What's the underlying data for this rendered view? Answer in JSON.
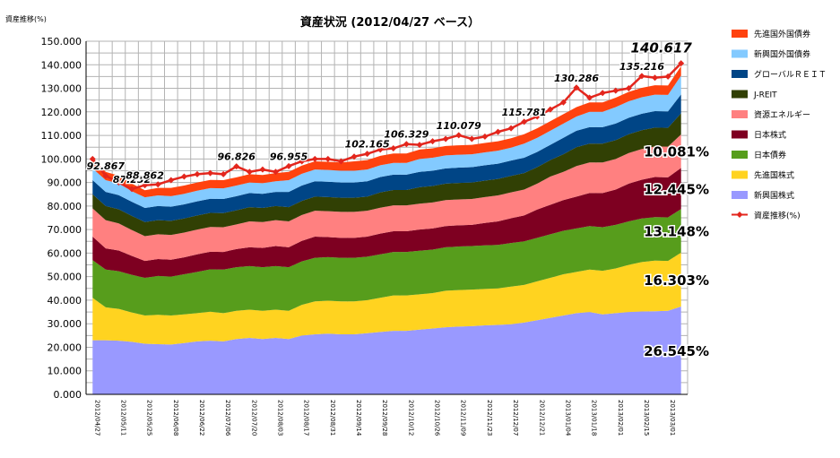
{
  "chart_data": {
    "type": "area",
    "stacked": true,
    "title": "資産状況 (2012/04/27 ベース）",
    "ylabel": "資産推移(%)",
    "ylim": [
      0,
      150
    ],
    "yticks": [
      "0.000",
      "10.000",
      "20.000",
      "30.000",
      "40.000",
      "50.000",
      "60.000",
      "70.000",
      "80.000",
      "90.000",
      "100.000",
      "110.000",
      "120.000",
      "130.000",
      "140.000",
      "150.000"
    ],
    "grid": true,
    "legend_position": "right",
    "x": [
      "2012/04/27",
      "2012/05/04",
      "2012/05/11",
      "2012/05/18",
      "2012/05/25",
      "2012/06/01",
      "2012/06/08",
      "2012/06/15",
      "2012/06/22",
      "2012/06/29",
      "2012/07/06",
      "2012/07/13",
      "2012/07/20",
      "2012/07/27",
      "2012/08/03",
      "2012/08/10",
      "2012/08/17",
      "2012/08/24",
      "2012/08/31",
      "2012/09/07",
      "2012/09/14",
      "2012/09/21",
      "2012/09/28",
      "2012/10/05",
      "2012/10/12",
      "2012/10/19",
      "2012/10/26",
      "2012/11/02",
      "2012/11/09",
      "2012/11/16",
      "2012/11/23",
      "2012/11/30",
      "2012/12/07",
      "2012/12/14",
      "2012/12/21",
      "2012/12/28",
      "2013/01/04",
      "2013/01/11",
      "2013/01/18",
      "2013/01/25",
      "2013/02/01",
      "2013/02/08",
      "2013/02/15",
      "2013/02/22",
      "2013/03/01",
      "2013/03/08"
    ],
    "x_tick_labels": [
      "2012/04/27",
      "2012/05/11",
      "2012/05/25",
      "2012/06/08",
      "2012/06/22",
      "2012/07/06",
      "2012/07/20",
      "2012/08/03",
      "2012/08/17",
      "2012/08/31",
      "2012/09/14",
      "2012/09/28",
      "2012/10/12",
      "2012/10/26",
      "2012/11/09",
      "2012/11/23",
      "2012/12/07",
      "2012/12/21",
      "2013/01/04",
      "2013/01/18",
      "2013/02/01",
      "2013/02/15",
      "2013/03/01"
    ],
    "series": [
      {
        "name": "新興国株式",
        "color": "#9999ff",
        "values": [
          23,
          23,
          22.8,
          22.3,
          21.5,
          21.3,
          21.2,
          21.8,
          22.5,
          22.8,
          22.5,
          23.5,
          24,
          23.5,
          24,
          23.5,
          25,
          25.5,
          25.8,
          25.5,
          25.5,
          26,
          26.5,
          27,
          27,
          27.5,
          28,
          28.5,
          28.8,
          29,
          29.3,
          29.5,
          29.8,
          30.5,
          31.5,
          32.5,
          33.5,
          34.5,
          35,
          34,
          34.5,
          35,
          35.2,
          35.3,
          35.5,
          37.3
        ]
      },
      {
        "name": "先進国株式",
        "color": "#ffd320",
        "values": [
          18,
          14,
          13.5,
          12.5,
          12,
          12.5,
          12.3,
          12.2,
          12,
          12.3,
          12,
          12,
          12,
          12,
          12,
          12,
          13,
          14,
          14,
          14,
          14,
          14,
          14.5,
          15,
          15,
          15,
          15,
          15.5,
          15.5,
          15.5,
          15.5,
          15.5,
          16,
          16,
          16.5,
          17,
          17.5,
          17.5,
          18,
          18.5,
          19,
          20,
          21,
          21.5,
          21.2,
          22.9
        ]
      },
      {
        "name": "日本債券",
        "color": "#579d1c",
        "values": [
          16,
          16,
          16,
          16,
          16,
          16.5,
          16.5,
          17,
          17.5,
          18,
          18.5,
          18.5,
          18.5,
          18.5,
          18.5,
          18.5,
          18.5,
          18.5,
          18.5,
          18.5,
          18.5,
          18.5,
          18.5,
          18.5,
          18.5,
          18.5,
          18.5,
          18.5,
          18.5,
          18.5,
          18.5,
          18.5,
          18.5,
          18.5,
          18.5,
          18.5,
          18.5,
          18.5,
          18.5,
          18.5,
          18.5,
          18.5,
          18.5,
          18.5,
          18.5,
          18.5
        ]
      },
      {
        "name": "日本株式",
        "color": "#7e0021",
        "values": [
          10,
          9,
          8.8,
          8,
          7.2,
          7.2,
          7.2,
          7.2,
          7.5,
          7.5,
          7.5,
          7.7,
          8,
          8.2,
          8.5,
          8.5,
          8.7,
          9,
          8.5,
          8.5,
          8.5,
          8.5,
          8.8,
          8.8,
          8.8,
          9,
          9,
          9,
          9,
          9,
          9.5,
          10,
          10.5,
          11,
          12,
          12.5,
          13,
          13.5,
          14,
          14.5,
          15,
          16,
          16.5,
          17,
          17,
          17.5
        ]
      },
      {
        "name": "資源エネルギー",
        "color": "#ff8080",
        "values": [
          12,
          12,
          11.5,
          11,
          10.5,
          10.5,
          10.5,
          10.5,
          10.5,
          10.5,
          10.5,
          10.5,
          11,
          11,
          11,
          11,
          11,
          11,
          11,
          11,
          11,
          11,
          11,
          11,
          11,
          11,
          11,
          11,
          11,
          11,
          11,
          11,
          11,
          11,
          11,
          12,
          12,
          13,
          13,
          13,
          13,
          13,
          13,
          13,
          13,
          14.2
        ]
      },
      {
        "name": "J-REIT",
        "color": "#314004",
        "values": [
          6,
          6,
          6,
          6,
          6,
          6,
          6,
          6,
          6,
          6,
          6,
          6,
          6,
          6,
          6,
          6,
          6,
          6,
          6,
          6,
          6,
          6,
          6.5,
          6.5,
          6.5,
          7,
          7,
          7,
          7,
          7,
          7,
          7,
          7,
          7,
          7,
          7,
          7.5,
          8,
          8,
          8,
          8,
          8,
          8,
          8,
          8,
          9
        ]
      },
      {
        "name": "グローバルＲＥＩＴ",
        "color": "#004586",
        "values": [
          6,
          6,
          6,
          6,
          6,
          6,
          6,
          6,
          6,
          6,
          6,
          6,
          6,
          6,
          6,
          6.5,
          6.5,
          6.5,
          6.5,
          6.5,
          6.5,
          6.5,
          6.5,
          6.5,
          6.5,
          6.5,
          6.5,
          6.5,
          6.5,
          6.5,
          6.5,
          6.5,
          6.5,
          6.5,
          6.5,
          6.5,
          7,
          7,
          7,
          7,
          7,
          7,
          7,
          7,
          7,
          8
        ]
      },
      {
        "name": "新興国外国債券",
        "color": "#83caff",
        "values": [
          5,
          5,
          5,
          4.5,
          4.5,
          4.5,
          4.5,
          4.5,
          4.5,
          4.5,
          4.5,
          4.5,
          4.5,
          4.5,
          4.5,
          5,
          5,
          5,
          5,
          5,
          5,
          5,
          5,
          5,
          5,
          5.5,
          5.5,
          5.5,
          5.5,
          5.5,
          5.5,
          5.5,
          5.5,
          6,
          6,
          6,
          6,
          6,
          6.5,
          6.5,
          7,
          7,
          7,
          7,
          7,
          8
        ]
      },
      {
        "name": "先進国外国債券",
        "color": "#ff420e",
        "values": [
          4,
          3.5,
          3.3,
          3.2,
          3,
          3.2,
          3.5,
          3.5,
          3.5,
          3.5,
          3.5,
          3.5,
          3.5,
          3.5,
          3.5,
          3.5,
          3.5,
          3.5,
          3.5,
          3.5,
          4,
          4,
          4,
          4,
          4,
          4,
          4,
          4,
          4,
          4,
          4,
          4,
          4,
          4,
          4,
          4,
          4,
          4,
          4,
          4,
          4,
          4,
          4,
          4,
          4,
          4
        ]
      }
    ],
    "line_series": {
      "name": "資産推移(%)",
      "color": "#e3261d",
      "values": [
        100,
        92.867,
        90,
        87.232,
        88.862,
        89.2,
        91,
        92.5,
        93.5,
        94,
        93.5,
        96.826,
        94.5,
        95.5,
        94.5,
        96.955,
        99,
        100,
        100,
        99,
        101,
        102.165,
        104,
        104.5,
        106.329,
        106,
        107.5,
        108.5,
        110.079,
        108.5,
        109.5,
        111.5,
        113,
        115.781,
        118,
        121,
        124,
        130.286,
        126,
        128,
        129,
        130,
        135.216,
        134.5,
        135,
        140.617
      ]
    },
    "point_labels": [
      {
        "index": 1,
        "text": "92.867"
      },
      {
        "index": 3,
        "text": "87.232"
      },
      {
        "index": 4,
        "text": "88.862"
      },
      {
        "index": 11,
        "text": "96.826"
      },
      {
        "index": 15,
        "text": "96.955"
      },
      {
        "index": 21,
        "text": "102.165"
      },
      {
        "index": 24,
        "text": "106.329"
      },
      {
        "index": 28,
        "text": "110.079"
      },
      {
        "index": 33,
        "text": "115.781"
      },
      {
        "index": 37,
        "text": "130.286"
      },
      {
        "index": 42,
        "text": "135.216"
      },
      {
        "index": 45,
        "text": "140.617"
      }
    ],
    "pct_labels": [
      {
        "text": "26.545%",
        "series_index": 0
      },
      {
        "text": "16.303%",
        "series_index": 1
      },
      {
        "text": "13.148%",
        "series_index": 2
      },
      {
        "text": "12.445%",
        "series_index": 3
      },
      {
        "text": "10.081%",
        "series_index": 4
      }
    ]
  }
}
